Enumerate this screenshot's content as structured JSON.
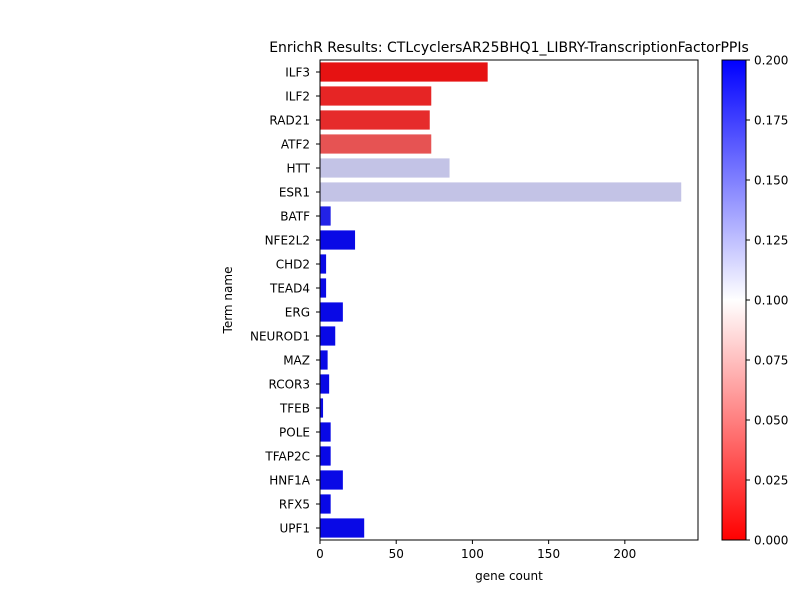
{
  "chart_data": {
    "type": "bar",
    "orientation": "horizontal",
    "title": "EnrichR Results: CTLcyclersAR25BHQ1_LIBRY-TranscriptionFactorPPIs",
    "xlabel": "gene count",
    "ylabel": "Term name",
    "xlim": [
      0,
      248
    ],
    "xticks": [
      0,
      50,
      100,
      150,
      200
    ],
    "categories": [
      "ILF3",
      "ILF2",
      "RAD21",
      "ATF2",
      "HTT",
      "ESR1",
      "BATF",
      "NFE2L2",
      "CHD2",
      "TEAD4",
      "ERG",
      "NEUROD1",
      "MAZ",
      "RCOR3",
      "TFEB",
      "POLE",
      "TFAP2C",
      "HNF1A",
      "RFX5",
      "UPF1"
    ],
    "values": [
      110,
      73,
      72,
      73,
      85,
      237,
      7,
      23,
      4,
      4,
      15,
      10,
      5,
      6,
      2,
      7,
      7,
      15,
      7,
      29
    ],
    "color_values": [
      0.008,
      0.016,
      0.019,
      0.036,
      0.115,
      0.115,
      0.185,
      0.196,
      0.196,
      0.196,
      0.196,
      0.196,
      0.196,
      0.196,
      0.196,
      0.196,
      0.196,
      0.196,
      0.196,
      0.196
    ],
    "colorbar": {
      "range": [
        0.0,
        0.2
      ],
      "ticks": [
        "0.000",
        "0.025",
        "0.050",
        "0.075",
        "0.100",
        "0.125",
        "0.150",
        "0.175",
        "0.200"
      ],
      "colors": [
        "#ff0000",
        "#ffffff",
        "#0000ff"
      ]
    },
    "grid": false,
    "legend": "none"
  }
}
